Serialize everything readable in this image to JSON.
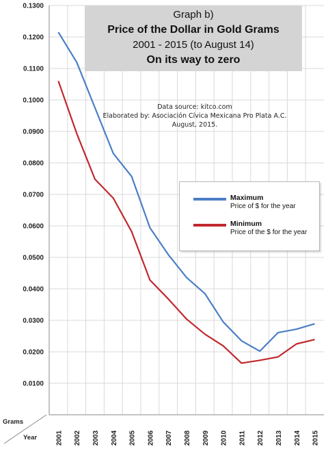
{
  "colors": {
    "maximum": "#4a7ec6",
    "minimum": "#c0282d",
    "grid": "#d8d8d8",
    "title_bg": "#d4d4d4"
  },
  "title": {
    "line1": "Graph b)",
    "line2": "Price of the Dollar in Gold Grams",
    "line3": "2001 - 2015 (to August 14)",
    "line4": "On its way to zero"
  },
  "source": {
    "line1": "Data source: kitco.com",
    "line2": "Elaborated by: Asociación Cívica Mexicana Pro Plata A.C.",
    "line3": "August, 2015."
  },
  "legend": {
    "maximum": {
      "name": "Maximum",
      "desc": "Price of $ for the year"
    },
    "minimum": {
      "name": "Minimum",
      "desc": "Price of the $ for the year"
    }
  },
  "axis_corner": {
    "y_unit": "Grams",
    "x_unit": "Year"
  },
  "chart_data": {
    "type": "line",
    "x": [
      "2001",
      "2002",
      "2003",
      "2004",
      "2005",
      "2006",
      "2007",
      "2008",
      "2009",
      "2010",
      "2011",
      "2012",
      "2013",
      "2014",
      "2015"
    ],
    "series": [
      {
        "name": "Maximum",
        "values": [
          0.1215,
          0.112,
          0.0975,
          0.083,
          0.0757,
          0.0594,
          0.0509,
          0.0436,
          0.0385,
          0.0295,
          0.0235,
          0.0202,
          0.0261,
          0.0272,
          0.0289
        ]
      },
      {
        "name": "Minimum",
        "values": [
          0.106,
          0.0894,
          0.0748,
          0.0688,
          0.0582,
          0.0428,
          0.0368,
          0.0304,
          0.0256,
          0.0219,
          0.0164,
          0.0173,
          0.0184,
          0.0225,
          0.0239
        ]
      }
    ],
    "yticks": [
      "0.1300",
      "0.1200",
      "0.1100",
      "0.1000",
      "0.0900",
      "0.0800",
      "0.0700",
      "0.0600",
      "0.0500",
      "0.0400",
      "0.0300",
      "0.0200",
      "0.0100"
    ],
    "ylim": [
      0,
      0.13
    ],
    "grid": true,
    "legend_position": "right-middle"
  }
}
